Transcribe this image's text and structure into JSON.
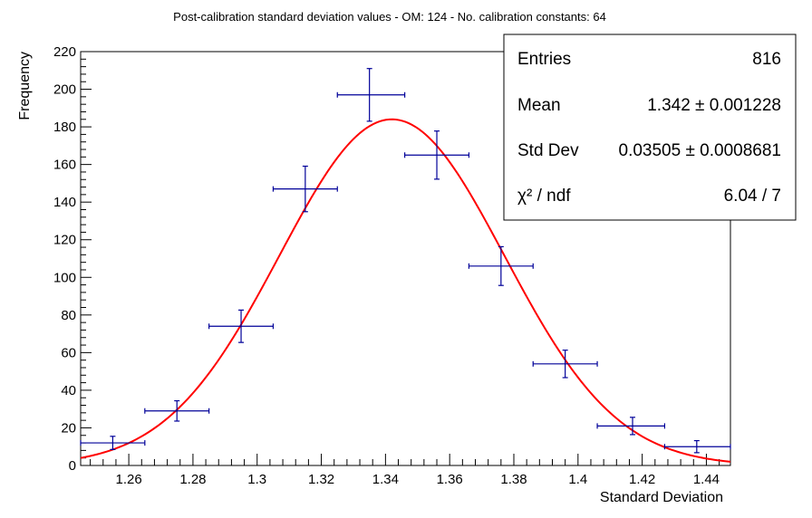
{
  "chart_data": {
    "type": "bar",
    "title": "Post-calibration standard deviation values - OM: 124 - No. calibration constants: 64",
    "xlabel": "Standard Deviation",
    "ylabel": "Frequency",
    "xlim": [
      1.245,
      1.4475
    ],
    "ylim": [
      0,
      220
    ],
    "x_ticks": [
      1.26,
      1.28,
      1.3,
      1.32,
      1.34,
      1.36,
      1.38,
      1.4,
      1.42,
      1.44
    ],
    "x_tick_labels": [
      "1.26",
      "1.28",
      "1.3",
      "1.32",
      "1.34",
      "1.36",
      "1.38",
      "1.4",
      "1.42",
      "1.44"
    ],
    "y_ticks": [
      0,
      20,
      40,
      60,
      80,
      100,
      120,
      140,
      160,
      180,
      200,
      220
    ],
    "y_tick_labels": [
      "0",
      "20",
      "40",
      "60",
      "80",
      "100",
      "120",
      "140",
      "160",
      "180",
      "200",
      "220"
    ],
    "grid": false,
    "series": [
      {
        "type": "histogram-points",
        "color": "#000099",
        "points": [
          {
            "x": 1.255,
            "y": 12,
            "xlo": 1.245,
            "xhi": 1.265,
            "yerr": 3.5
          },
          {
            "x": 1.275,
            "y": 29,
            "xlo": 1.265,
            "xhi": 1.285,
            "yerr": 5.4
          },
          {
            "x": 1.295,
            "y": 74,
            "xlo": 1.285,
            "xhi": 1.305,
            "yerr": 8.6
          },
          {
            "x": 1.315,
            "y": 147,
            "xlo": 1.305,
            "xhi": 1.325,
            "yerr": 12.1
          },
          {
            "x": 1.335,
            "y": 197,
            "xlo": 1.325,
            "xhi": 1.346,
            "yerr": 14.0
          },
          {
            "x": 1.356,
            "y": 165,
            "xlo": 1.346,
            "xhi": 1.366,
            "yerr": 12.8
          },
          {
            "x": 1.376,
            "y": 106,
            "xlo": 1.366,
            "xhi": 1.386,
            "yerr": 10.3
          },
          {
            "x": 1.396,
            "y": 54,
            "xlo": 1.386,
            "xhi": 1.406,
            "yerr": 7.3
          },
          {
            "x": 1.417,
            "y": 21,
            "xlo": 1.406,
            "xhi": 1.427,
            "yerr": 4.6
          },
          {
            "x": 1.437,
            "y": 10,
            "xlo": 1.427,
            "xhi": 1.4475,
            "yerr": 3.2
          }
        ]
      },
      {
        "type": "gaussian-fit",
        "color": "#ff0000",
        "amplitude": 184,
        "mean": 1.342,
        "sigma": 0.03505
      }
    ],
    "stats_box": {
      "placement": "top-right",
      "rows": [
        {
          "label": "Entries",
          "value": "816"
        },
        {
          "label": "Mean",
          "value": "1.342 ± 0.001228"
        },
        {
          "label": "Std Dev",
          "value": "0.03505 ± 0.0008681"
        },
        {
          "label": "χ² / ndf",
          "value": "6.04 / 7"
        }
      ]
    }
  }
}
